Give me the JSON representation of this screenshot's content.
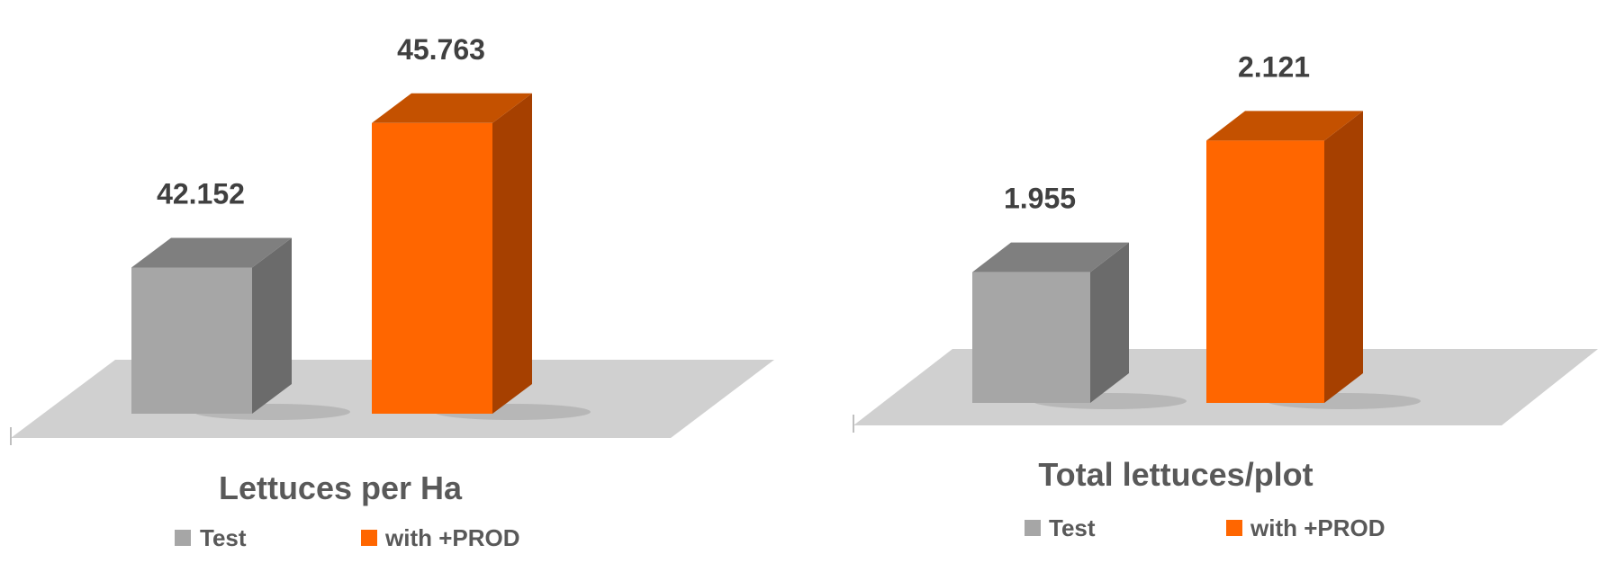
{
  "colors": {
    "test_front": "#a6a6a6",
    "test_top": "#7f7f7f",
    "test_side": "#6b6b6b",
    "prod_front": "#ff6600",
    "prod_top": "#c45100",
    "prod_side": "#a64000",
    "floor": "#d0d0d0"
  },
  "chart_data": [
    {
      "type": "bar",
      "title": "Lettuces per Ha",
      "categories": [
        "Test",
        "with +PROD"
      ],
      "values": [
        42.152,
        45.763
      ],
      "value_labels": [
        "42.152",
        "45.763"
      ],
      "ylim": [
        38.5,
        46.5
      ],
      "legend": [
        "Test",
        "with +PROD"
      ],
      "legend_position": "bottom",
      "style": "3d"
    },
    {
      "type": "bar",
      "title": "Total lettuces/plot",
      "categories": [
        "Test",
        "with +PROD"
      ],
      "values": [
        1.955,
        2.121
      ],
      "value_labels": [
        "1.955",
        "2.121"
      ],
      "ylim": [
        1.79,
        2.16
      ],
      "legend": [
        "Test",
        "with +PROD"
      ],
      "legend_position": "bottom",
      "style": "3d"
    }
  ]
}
